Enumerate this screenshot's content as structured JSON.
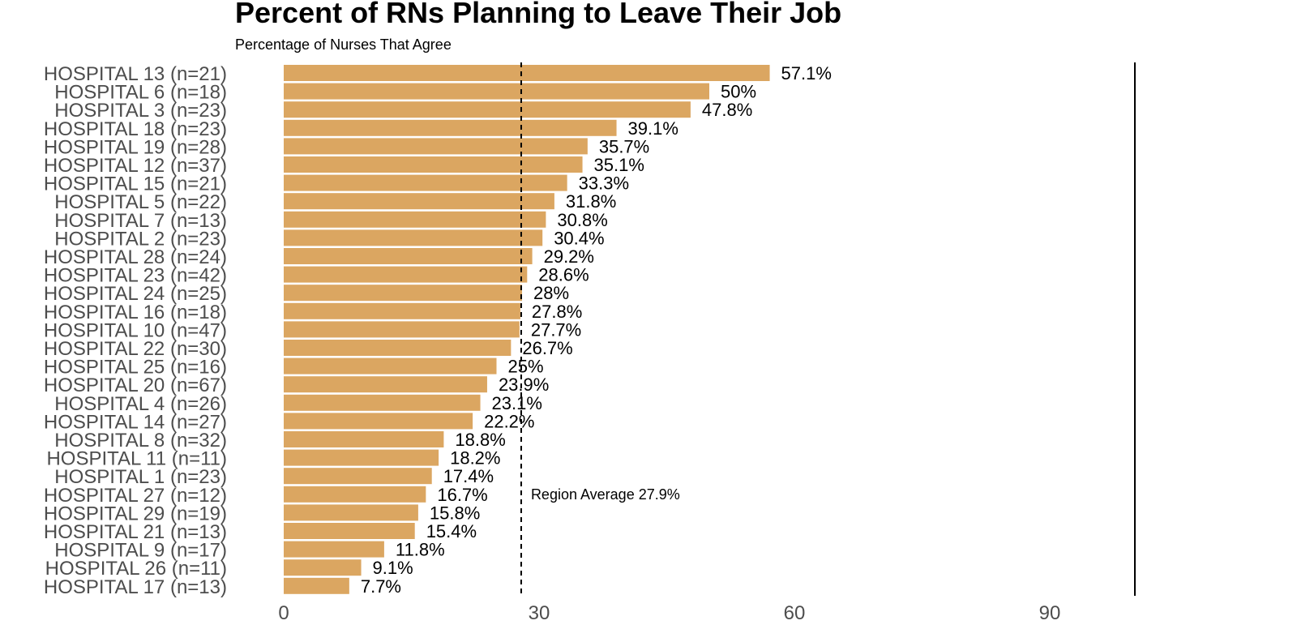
{
  "colors": {
    "bar": "#DBA661",
    "reference_line": "#000000",
    "label_text": "#4d4d4d",
    "value_text": "#000000"
  },
  "chart_data": {
    "type": "bar",
    "orientation": "horizontal",
    "title": "Percent of RNs Planning to Leave Their Job",
    "subtitle": "Percentage of Nurses That Agree",
    "categories": [
      "HOSPITAL 13 (n=21)",
      "HOSPITAL 6 (n=18)",
      "HOSPITAL 3 (n=23)",
      "HOSPITAL 18 (n=23)",
      "HOSPITAL 19 (n=28)",
      "HOSPITAL 12 (n=37)",
      "HOSPITAL 15 (n=21)",
      "HOSPITAL 5 (n=22)",
      "HOSPITAL 7 (n=13)",
      "HOSPITAL 2 (n=23)",
      "HOSPITAL 28 (n=24)",
      "HOSPITAL 23 (n=42)",
      "HOSPITAL 24 (n=25)",
      "HOSPITAL 16 (n=18)",
      "HOSPITAL 10 (n=47)",
      "HOSPITAL 22 (n=30)",
      "HOSPITAL 25 (n=16)",
      "HOSPITAL 20 (n=67)",
      "HOSPITAL 4 (n=26)",
      "HOSPITAL 14 (n=27)",
      "HOSPITAL 8 (n=32)",
      "HOSPITAL 11 (n=11)",
      "HOSPITAL 1 (n=23)",
      "HOSPITAL 27 (n=12)",
      "HOSPITAL 29 (n=19)",
      "HOSPITAL 21 (n=13)",
      "HOSPITAL 9 (n=17)",
      "HOSPITAL 26 (n=11)",
      "HOSPITAL 17 (n=13)"
    ],
    "values": [
      57.1,
      50,
      47.8,
      39.1,
      35.7,
      35.1,
      33.3,
      31.8,
      30.8,
      30.4,
      29.2,
      28.6,
      28,
      27.8,
      27.7,
      26.7,
      25,
      23.9,
      23.1,
      22.2,
      18.8,
      18.2,
      17.4,
      16.7,
      15.8,
      15.4,
      11.8,
      9.1,
      7.7
    ],
    "value_labels": [
      "57.1%",
      "50%",
      "47.8%",
      "39.1%",
      "35.7%",
      "35.1%",
      "33.3%",
      "31.8%",
      "30.8%",
      "30.4%",
      "29.2%",
      "28.6%",
      "28%",
      "27.8%",
      "27.7%",
      "26.7%",
      "25%",
      "23.9%",
      "23.1%",
      "22.2%",
      "18.8%",
      "18.2%",
      "17.4%",
      "16.7%",
      "15.8%",
      "15.4%",
      "11.8%",
      "9.1%",
      "7.7%"
    ],
    "x_ticks": [
      0,
      30,
      60,
      90
    ],
    "x_tick_labels": [
      "0",
      "30",
      "60",
      "90"
    ],
    "xlim": [
      0,
      102
    ],
    "xlabel": "",
    "ylabel": "",
    "grid": false,
    "reference_line": {
      "value": 27.9,
      "style": "dashed",
      "label": "Region Average 27.9%"
    },
    "right_boundary_value": 100
  }
}
